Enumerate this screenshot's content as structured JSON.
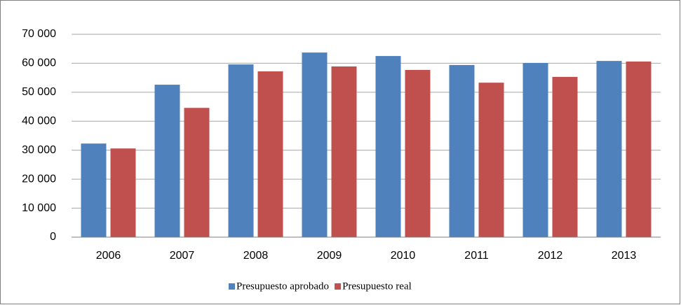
{
  "chart_data": {
    "type": "bar",
    "categories": [
      "2006",
      "2007",
      "2008",
      "2009",
      "2010",
      "2011",
      "2012",
      "2013"
    ],
    "series": [
      {
        "name": "Presupuesto aprobado",
        "color": "#4f81bd",
        "values": [
          32300,
          52600,
          59600,
          63700,
          62500,
          59400,
          60100,
          60800
        ]
      },
      {
        "name": "Presupuesto real",
        "color": "#c0504d",
        "values": [
          30600,
          44600,
          57200,
          58900,
          57700,
          53300,
          55300,
          60600
        ]
      }
    ],
    "ylim": [
      0,
      70000
    ],
    "yticks": [
      0,
      {
        "value": 10000,
        "label": "10 000"
      },
      {
        "value": 20000,
        "label": "20 000"
      },
      {
        "value": 30000,
        "label": "30 000"
      },
      {
        "value": 40000,
        "label": "40 000"
      },
      {
        "value": 50000,
        "label": "50 000"
      },
      {
        "value": 60000,
        "label": "60 000"
      },
      {
        "value": 70000,
        "label": "70 000"
      }
    ],
    "grid": true,
    "legend": "bottom"
  }
}
